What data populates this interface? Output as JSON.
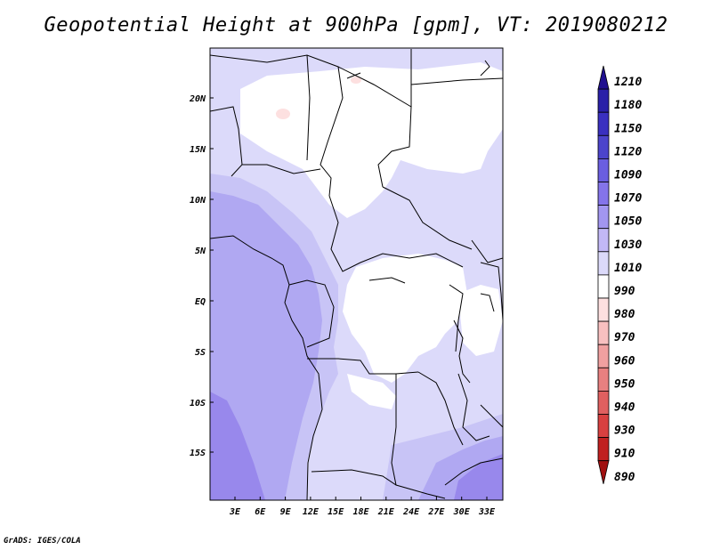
{
  "title": "Geopotential Height at 900hPa [gpm], VT: 2019080212",
  "credit": "GrADS: IGES/COLA",
  "lat_ticks": [
    "20N",
    "15N",
    "10N",
    "5N",
    "EQ",
    "5S",
    "10S",
    "15S"
  ],
  "lon_ticks": [
    "3E",
    "6E",
    "9E",
    "12E",
    "15E",
    "18E",
    "21E",
    "24E",
    "27E",
    "30E",
    "33E"
  ],
  "colorbar": {
    "labels": [
      "1210",
      "1180",
      "1150",
      "1120",
      "1090",
      "1070",
      "1050",
      "1030",
      "1010",
      "990",
      "980",
      "970",
      "960",
      "950",
      "940",
      "930",
      "910",
      "890"
    ],
    "colors": [
      "#201090",
      "#2a20a8",
      "#3a30c0",
      "#4c44cc",
      "#6a5ee0",
      "#8474ea",
      "#a296f0",
      "#c2b8f6",
      "#dcdafa",
      "#ffffff",
      "#fde0e0",
      "#f8c0c0",
      "#f0a0a0",
      "#e88080",
      "#e06060",
      "#d84040",
      "#c02020",
      "#a01010"
    ]
  },
  "map_colors": {
    "white": "#ffffff",
    "pink": "#fde0e0",
    "level_1010": "#dcdafa",
    "level_1030": "#c8c4f6",
    "level_1050": "#b0a8f2",
    "level_1070": "#9888ec"
  }
}
